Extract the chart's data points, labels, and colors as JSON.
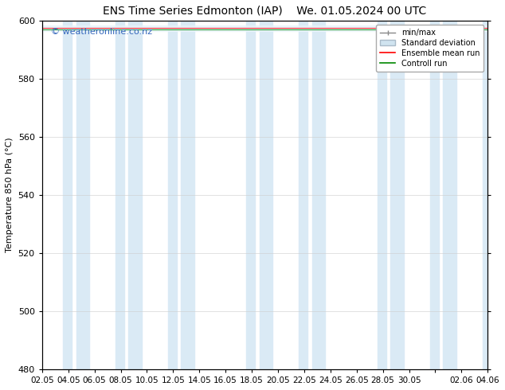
{
  "title_left": "ENS Time Series Edmonton (IAP)",
  "title_right": "We. 01.05.2024 00 UTC",
  "ylabel": "Temperature 850 hPa (°C)",
  "ylim": [
    480,
    600
  ],
  "yticks": [
    480,
    500,
    520,
    540,
    560,
    580,
    600
  ],
  "background_color": "#ffffff",
  "plot_bg_color": "#ffffff",
  "watermark": "© weatheronline.co.nz",
  "watermark_color": "#3366bb",
  "legend_entries": [
    "min/max",
    "Standard deviation",
    "Ensemble mean run",
    "Controll run"
  ],
  "band_color": "#daeaf5",
  "band_alpha": 1.0,
  "xtick_labels": [
    "02.05",
    "04.05",
    "06.05",
    "08.05",
    "10.05",
    "12.05",
    "14.05",
    "16.05",
    "18.05",
    "20.05",
    "22.05",
    "24.05",
    "26.05",
    "28.05",
    "30.05",
    "",
    "02.06",
    "04.06"
  ],
  "mean_value": 597.5,
  "control_value": 597.0,
  "minmax_upper": 598.5,
  "minmax_lower": 596.5,
  "std_upper": 598.0,
  "std_lower": 597.0,
  "title_fontsize": 10,
  "axis_fontsize": 8,
  "watermark_fontsize": 8,
  "legend_fontsize": 7,
  "spine_color": "#000000",
  "tick_color": "#000000"
}
